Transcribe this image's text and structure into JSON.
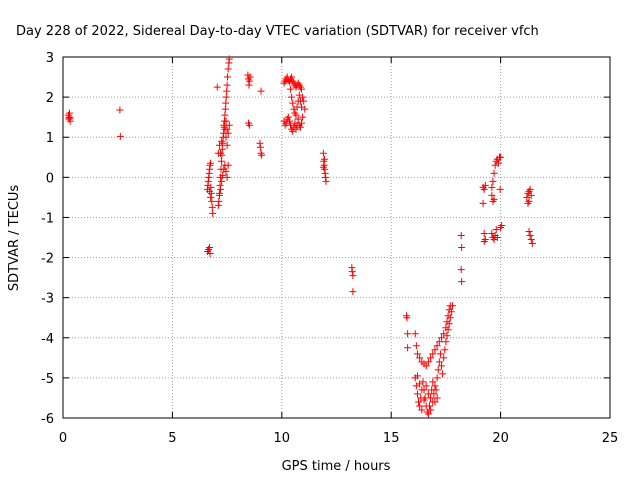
{
  "chart_data": {
    "type": "scatter",
    "title": "Day 228 of 2022, Sidereal Day-to-day VTEC variation (SDTVAR) for receiver vfch",
    "xlabel": "GPS time / hours",
    "ylabel": "SDTVAR / TECUs",
    "xlim": [
      0,
      25
    ],
    "ylim": [
      -6,
      3
    ],
    "xticks": [
      0,
      5,
      10,
      15,
      20,
      25
    ],
    "yticks": [
      -6,
      -5,
      -4,
      -3,
      -2,
      -1,
      0,
      1,
      2,
      3
    ],
    "xtick_labels": [
      "0",
      "5",
      "10",
      "15",
      "20",
      "25"
    ],
    "ytick_labels": [
      "-6",
      "-5",
      "-4",
      "-3",
      "-2",
      "-1",
      "0",
      "1",
      "2",
      "3"
    ],
    "grid": true,
    "marker": "+",
    "color": "#ff0000",
    "series": [
      {
        "name": "vfch",
        "points": [
          [
            0.25,
            1.55
          ],
          [
            0.27,
            1.45
          ],
          [
            0.28,
            1.5
          ],
          [
            0.3,
            1.6
          ],
          [
            0.32,
            1.48
          ],
          [
            0.33,
            1.4
          ],
          [
            2.6,
            1.68
          ],
          [
            2.62,
            1.02
          ],
          [
            6.6,
            -1.85
          ],
          [
            6.65,
            -1.8
          ],
          [
            6.7,
            -1.75
          ],
          [
            6.72,
            -1.9
          ],
          [
            6.6,
            -0.3
          ],
          [
            6.62,
            -0.2
          ],
          [
            6.64,
            -0.1
          ],
          [
            6.66,
            0.0
          ],
          [
            6.68,
            0.1
          ],
          [
            6.7,
            0.2
          ],
          [
            6.72,
            0.3
          ],
          [
            6.74,
            0.35
          ],
          [
            6.76,
            -0.25
          ],
          [
            6.78,
            -0.4
          ],
          [
            6.8,
            -0.6
          ],
          [
            6.82,
            -0.75
          ],
          [
            6.84,
            -0.9
          ],
          [
            6.75,
            -0.5
          ],
          [
            6.7,
            -0.35
          ],
          [
            7.1,
            -0.7
          ],
          [
            7.12,
            -0.6
          ],
          [
            7.15,
            -0.4
          ],
          [
            7.18,
            -0.2
          ],
          [
            7.2,
            0.0
          ],
          [
            7.22,
            0.2
          ],
          [
            7.24,
            0.4
          ],
          [
            7.26,
            0.55
          ],
          [
            7.28,
            0.7
          ],
          [
            7.3,
            0.85
          ],
          [
            7.32,
            1.0
          ],
          [
            7.34,
            1.1
          ],
          [
            7.36,
            1.25
          ],
          [
            7.38,
            1.4
          ],
          [
            7.4,
            1.55
          ],
          [
            7.42,
            1.7
          ],
          [
            7.44,
            1.85
          ],
          [
            7.46,
            2.0
          ],
          [
            7.48,
            2.15
          ],
          [
            7.5,
            2.3
          ],
          [
            7.52,
            2.5
          ],
          [
            7.55,
            2.7
          ],
          [
            7.58,
            2.85
          ],
          [
            7.6,
            2.95
          ],
          [
            7.15,
            -0.45
          ],
          [
            7.2,
            -0.3
          ],
          [
            7.25,
            -0.1
          ],
          [
            7.3,
            0.05
          ],
          [
            7.35,
            0.2
          ],
          [
            7.4,
            0.3
          ],
          [
            7.45,
            0.15
          ],
          [
            7.5,
            0.0
          ],
          [
            7.55,
            0.3
          ],
          [
            7.5,
            0.8
          ],
          [
            7.45,
            1.0
          ],
          [
            7.4,
            1.2
          ],
          [
            7.35,
            1.3
          ],
          [
            7.25,
            0.9
          ],
          [
            7.2,
            0.6
          ],
          [
            7.6,
            1.3
          ],
          [
            7.55,
            1.1
          ],
          [
            7.5,
            1.2
          ],
          [
            7.45,
            1.4
          ],
          [
            7.05,
            2.25
          ],
          [
            7.1,
            0.6
          ],
          [
            7.15,
            0.8
          ],
          [
            8.45,
            2.55
          ],
          [
            8.47,
            2.45
          ],
          [
            8.5,
            2.3
          ],
          [
            8.52,
            2.4
          ],
          [
            8.55,
            2.5
          ],
          [
            8.48,
            1.35
          ],
          [
            8.52,
            1.3
          ],
          [
            9.05,
            2.15
          ],
          [
            9.0,
            0.85
          ],
          [
            9.02,
            0.75
          ],
          [
            9.05,
            0.6
          ],
          [
            9.08,
            0.55
          ],
          [
            10.1,
            2.35
          ],
          [
            10.15,
            2.4
          ],
          [
            10.2,
            2.45
          ],
          [
            10.25,
            2.5
          ],
          [
            10.3,
            2.42
          ],
          [
            10.35,
            2.38
          ],
          [
            10.4,
            2.45
          ],
          [
            10.45,
            2.5
          ],
          [
            10.5,
            2.4
          ],
          [
            10.55,
            2.35
          ],
          [
            10.6,
            2.3
          ],
          [
            10.65,
            2.25
          ],
          [
            10.7,
            2.3
          ],
          [
            10.75,
            2.35
          ],
          [
            10.8,
            2.3
          ],
          [
            10.85,
            2.25
          ],
          [
            10.9,
            2.2
          ],
          [
            10.1,
            1.4
          ],
          [
            10.15,
            1.3
          ],
          [
            10.2,
            1.35
          ],
          [
            10.25,
            1.45
          ],
          [
            10.3,
            1.5
          ],
          [
            10.35,
            1.4
          ],
          [
            10.4,
            1.3
          ],
          [
            10.45,
            1.2
          ],
          [
            10.5,
            1.15
          ],
          [
            10.55,
            1.25
          ],
          [
            10.6,
            1.35
          ],
          [
            10.65,
            1.2
          ],
          [
            10.7,
            1.3
          ],
          [
            10.75,
            1.45
          ],
          [
            10.8,
            1.3
          ],
          [
            10.85,
            1.25
          ],
          [
            10.9,
            1.35
          ],
          [
            10.95,
            1.5
          ],
          [
            10.4,
            2.2
          ],
          [
            10.45,
            2.0
          ],
          [
            10.5,
            1.85
          ],
          [
            10.55,
            1.7
          ],
          [
            10.6,
            1.6
          ],
          [
            10.65,
            1.55
          ],
          [
            10.7,
            1.75
          ],
          [
            10.75,
            1.9
          ],
          [
            10.8,
            2.05
          ],
          [
            10.85,
            1.9
          ],
          [
            10.9,
            1.75
          ],
          [
            10.95,
            2.0
          ],
          [
            11.0,
            1.9
          ],
          [
            11.05,
            1.7
          ],
          [
            11.9,
            0.6
          ],
          [
            11.92,
            0.4
          ],
          [
            11.94,
            0.3
          ],
          [
            11.96,
            0.2
          ],
          [
            11.98,
            0.1
          ],
          [
            12.0,
            0.0
          ],
          [
            12.02,
            -0.1
          ],
          [
            11.95,
            0.45
          ],
          [
            11.9,
            0.25
          ],
          [
            13.2,
            -2.25
          ],
          [
            13.22,
            -2.35
          ],
          [
            13.25,
            -2.45
          ],
          [
            13.25,
            -2.85
          ],
          [
            15.7,
            -3.45
          ],
          [
            15.72,
            -3.5
          ],
          [
            15.75,
            -3.9
          ],
          [
            15.75,
            -4.25
          ],
          [
            16.1,
            -3.9
          ],
          [
            16.15,
            -4.2
          ],
          [
            16.2,
            -4.4
          ],
          [
            16.3,
            -4.5
          ],
          [
            16.4,
            -4.6
          ],
          [
            16.5,
            -4.65
          ],
          [
            16.6,
            -4.7
          ],
          [
            16.7,
            -4.6
          ],
          [
            16.8,
            -4.5
          ],
          [
            16.9,
            -4.4
          ],
          [
            17.0,
            -4.3
          ],
          [
            17.1,
            -4.2
          ],
          [
            17.2,
            -4.1
          ],
          [
            17.3,
            -4.0
          ],
          [
            17.4,
            -3.9
          ],
          [
            17.5,
            -3.75
          ],
          [
            17.55,
            -3.6
          ],
          [
            17.6,
            -3.45
          ],
          [
            17.65,
            -3.3
          ],
          [
            17.7,
            -3.2
          ],
          [
            16.1,
            -5.0
          ],
          [
            16.15,
            -5.2
          ],
          [
            16.2,
            -5.4
          ],
          [
            16.25,
            -5.6
          ],
          [
            16.3,
            -5.7
          ],
          [
            16.35,
            -5.5
          ],
          [
            16.4,
            -5.3
          ],
          [
            16.45,
            -5.1
          ],
          [
            16.5,
            -5.3
          ],
          [
            16.55,
            -5.5
          ],
          [
            16.6,
            -5.7
          ],
          [
            16.65,
            -5.85
          ],
          [
            16.7,
            -5.9
          ],
          [
            16.75,
            -5.7
          ],
          [
            16.8,
            -5.5
          ],
          [
            16.85,
            -5.3
          ],
          [
            16.9,
            -5.1
          ],
          [
            16.95,
            -5.4
          ],
          [
            17.0,
            -5.6
          ],
          [
            17.05,
            -5.3
          ],
          [
            17.1,
            -5.0
          ],
          [
            17.15,
            -4.8
          ],
          [
            17.2,
            -4.6
          ],
          [
            17.25,
            -4.4
          ],
          [
            17.3,
            -4.7
          ],
          [
            17.35,
            -4.9
          ],
          [
            16.2,
            -4.95
          ],
          [
            16.3,
            -5.15
          ],
          [
            16.5,
            -5.55
          ],
          [
            16.6,
            -5.2
          ],
          [
            16.8,
            -5.8
          ],
          [
            16.9,
            -5.6
          ],
          [
            17.0,
            -5.2
          ],
          [
            16.4,
            -5.8
          ],
          [
            16.7,
            -5.4
          ],
          [
            17.1,
            -5.5
          ],
          [
            17.4,
            -4.5
          ],
          [
            17.45,
            -4.3
          ],
          [
            17.5,
            -4.1
          ],
          [
            17.55,
            -3.95
          ],
          [
            17.6,
            -3.8
          ],
          [
            17.65,
            -3.65
          ],
          [
            17.7,
            -3.5
          ],
          [
            17.75,
            -3.35
          ],
          [
            17.8,
            -3.2
          ],
          [
            18.2,
            -1.45
          ],
          [
            18.22,
            -1.75
          ],
          [
            18.2,
            -2.3
          ],
          [
            18.22,
            -2.6
          ],
          [
            19.2,
            -0.25
          ],
          [
            19.25,
            -0.3
          ],
          [
            19.3,
            -0.2
          ],
          [
            19.2,
            -0.65
          ],
          [
            19.25,
            -1.4
          ],
          [
            19.3,
            -1.55
          ],
          [
            19.25,
            -1.6
          ],
          [
            19.6,
            -0.25
          ],
          [
            19.65,
            -0.1
          ],
          [
            19.7,
            0.1
          ],
          [
            19.75,
            0.3
          ],
          [
            19.8,
            0.4
          ],
          [
            19.85,
            0.45
          ],
          [
            19.9,
            0.35
          ],
          [
            19.95,
            0.5
          ],
          [
            19.6,
            -0.45
          ],
          [
            19.7,
            -0.55
          ],
          [
            19.65,
            -0.6
          ],
          [
            19.6,
            -1.4
          ],
          [
            19.65,
            -1.5
          ],
          [
            19.7,
            -1.55
          ],
          [
            19.75,
            -1.45
          ],
          [
            19.8,
            -1.3
          ],
          [
            19.85,
            -1.5
          ],
          [
            20.0,
            0.5
          ],
          [
            20.0,
            -1.25
          ],
          [
            20.05,
            -1.2
          ],
          [
            19.98,
            -0.3
          ],
          [
            21.2,
            -0.5
          ],
          [
            21.25,
            -0.4
          ],
          [
            21.3,
            -0.35
          ],
          [
            21.35,
            -0.3
          ],
          [
            21.4,
            -0.45
          ],
          [
            21.3,
            -0.6
          ],
          [
            21.25,
            -0.65
          ],
          [
            21.3,
            -1.35
          ],
          [
            21.35,
            -1.45
          ],
          [
            21.4,
            -1.55
          ],
          [
            21.45,
            -1.65
          ]
        ]
      }
    ]
  }
}
